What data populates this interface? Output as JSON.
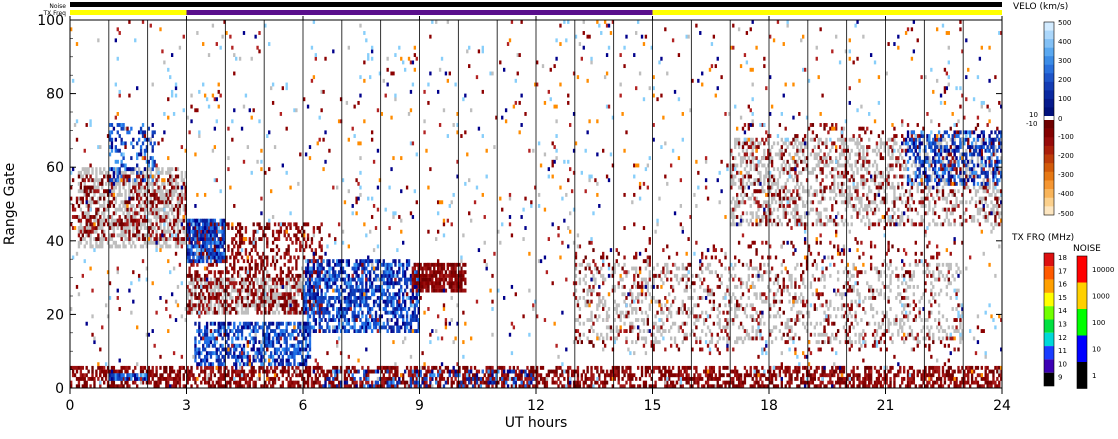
{
  "chart_data": {
    "type": "heatmap",
    "xlabel": "UT hours",
    "ylabel": "Range Gate",
    "xlim": [
      0,
      24
    ],
    "ylim": [
      0,
      100
    ],
    "x_ticks": [
      "0",
      "3",
      "6",
      "9",
      "12",
      "15",
      "18",
      "21",
      "24"
    ],
    "y_ticks": [
      "0",
      "20",
      "40",
      "60",
      "80",
      "100"
    ],
    "scan_boundaries_hours": [
      1,
      2,
      3,
      4,
      5,
      6,
      7,
      8,
      9,
      10,
      11,
      12,
      13,
      14,
      15,
      16,
      17,
      18,
      19,
      20,
      21,
      22,
      23
    ],
    "status_bars": {
      "noise_label": "Noise",
      "txfreq_label": "TX Freq",
      "txfreq_segments": [
        {
          "start": 0,
          "end": 3,
          "color": "#ffff00"
        },
        {
          "start": 3,
          "end": 15,
          "color": "#5a0f8c"
        },
        {
          "start": 15,
          "end": 24,
          "color": "#ffff00"
        }
      ]
    },
    "velocity_scale": {
      "title": "VELO (km/s)",
      "labels": [
        "500",
        "400",
        "300",
        "200",
        "100",
        "0",
        "-100",
        "-200",
        "-300",
        "-400",
        "-500"
      ],
      "near_zero_labels": [
        "10",
        "-10"
      ]
    },
    "txfreq_scale": {
      "title": "TX FRQ (MHz)",
      "labels": [
        "18",
        "17",
        "16",
        "15",
        "14",
        "13",
        "12",
        "11",
        "10",
        "9"
      ],
      "colors": [
        "#dd1010",
        "#ff5a00",
        "#ffa000",
        "#ffff00",
        "#70ff00",
        "#00e040",
        "#00d8d8",
        "#1a3cff",
        "#3c00b4",
        "#000000"
      ]
    },
    "noise_scale": {
      "title": "NOISE",
      "labels": [
        "10000",
        "1000",
        "100",
        "10",
        "1"
      ],
      "colors": [
        "#ff0000",
        "#ffd000",
        "#00ff00",
        "#0000ff",
        "#000000"
      ]
    },
    "regions": [
      {
        "name": "near-range-negative",
        "x": [
          0,
          24
        ],
        "y": [
          0,
          6
        ],
        "kind": "neg",
        "density": 0.55
      },
      {
        "name": "near-range-blue-early",
        "x": [
          1.0,
          2.0
        ],
        "y": [
          2,
          4
        ],
        "kind": "pos",
        "density": 0.9
      },
      {
        "name": "early-ground-scatter",
        "x": [
          0.2,
          3.0
        ],
        "y": [
          38,
          60
        ],
        "kind": "gs",
        "density": 0.5
      },
      {
        "name": "early-negative",
        "x": [
          0,
          3.0
        ],
        "y": [
          40,
          58
        ],
        "kind": "neg",
        "density": 0.25
      },
      {
        "name": "early-positive",
        "x": [
          1.0,
          2.2
        ],
        "y": [
          56,
          72
        ],
        "kind": "pos",
        "density": 0.35
      },
      {
        "name": "post3-ground-scatter",
        "x": [
          3.0,
          6.0
        ],
        "y": [
          20,
          30
        ],
        "kind": "gs",
        "density": 0.55
      },
      {
        "name": "post3-negative",
        "x": [
          3.0,
          6.5
        ],
        "y": [
          20,
          45
        ],
        "kind": "neg",
        "density": 0.35
      },
      {
        "name": "post3-positive-top",
        "x": [
          3.0,
          4.0
        ],
        "y": [
          34,
          46
        ],
        "kind": "pos",
        "density": 0.8
      },
      {
        "name": "blue-lower-band",
        "x": [
          3.2,
          6.2
        ],
        "y": [
          6,
          18
        ],
        "kind": "pos",
        "density": 0.55
      },
      {
        "name": "blue-flow-6to9",
        "x": [
          6.0,
          9.0
        ],
        "y": [
          15,
          35
        ],
        "kind": "pos",
        "density": 0.6
      },
      {
        "name": "red-9to10",
        "x": [
          8.8,
          10.2
        ],
        "y": [
          26,
          34
        ],
        "kind": "neg",
        "density": 0.8
      },
      {
        "name": "blue-near-range-6to12",
        "x": [
          6.5,
          12.0
        ],
        "y": [
          0,
          5
        ],
        "kind": "pos",
        "density": 0.25
      },
      {
        "name": "mid-ground-scatter",
        "x": [
          13.0,
          23.0
        ],
        "y": [
          12,
          34
        ],
        "kind": "gs",
        "density": 0.2
      },
      {
        "name": "mid-negative",
        "x": [
          13.0,
          23.0
        ],
        "y": [
          10,
          40
        ],
        "kind": "neg",
        "density": 0.08
      },
      {
        "name": "late-ground-scatter",
        "x": [
          17.0,
          24.0
        ],
        "y": [
          44,
          68
        ],
        "kind": "gs",
        "density": 0.3
      },
      {
        "name": "late-negative",
        "x": [
          17.0,
          24.0
        ],
        "y": [
          44,
          72
        ],
        "kind": "neg",
        "density": 0.12
      },
      {
        "name": "late-positive",
        "x": [
          21.5,
          24.0
        ],
        "y": [
          55,
          70
        ],
        "kind": "pos",
        "density": 0.4
      },
      {
        "name": "sparse-scatter",
        "x": [
          0,
          24
        ],
        "y": [
          0,
          100
        ],
        "kind": "mix",
        "density": 0.03
      }
    ]
  }
}
